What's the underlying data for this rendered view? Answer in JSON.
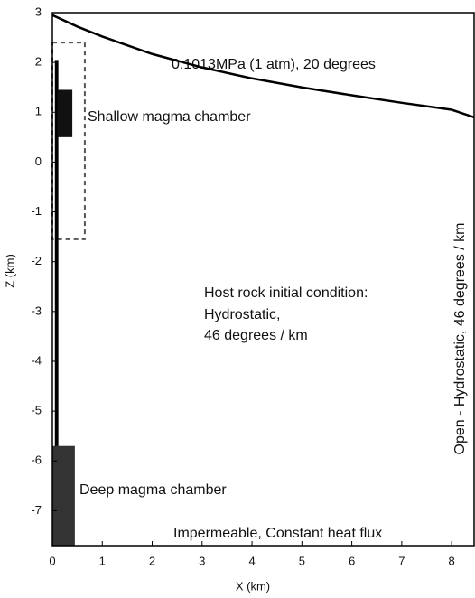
{
  "chart_data": {
    "type": "domain",
    "x_label": "X (km)",
    "y_label": "Z (km)",
    "xlim": [
      0,
      8.45
    ],
    "ylim": [
      -7.7,
      3
    ],
    "xticks": [
      0,
      1,
      2,
      3,
      4,
      5,
      6,
      7,
      8
    ],
    "yticks": [
      -7,
      -6,
      -5,
      -4,
      -3,
      -2,
      -1,
      0,
      1,
      2,
      3
    ],
    "surface": {
      "x": [
        0,
        0.5,
        1,
        2,
        3,
        4,
        5,
        6,
        7,
        8,
        8.45
      ],
      "y": [
        2.95,
        2.72,
        2.52,
        2.17,
        1.9,
        1.68,
        1.5,
        1.34,
        1.19,
        1.05,
        0.9
      ],
      "color": "#000000"
    },
    "conduit": {
      "x": [
        0.05,
        0.12
      ],
      "y": [
        -7.7,
        2.05
      ],
      "color": "#000000"
    },
    "shallow_chamber": {
      "name": "Shallow magma chamber",
      "x": [
        0.1,
        0.4
      ],
      "y": [
        0.5,
        1.45
      ],
      "color": "#111111"
    },
    "deep_chamber": {
      "name": "Deep magma chamber",
      "x": [
        0,
        0.45
      ],
      "y": [
        -7.7,
        -5.7
      ],
      "color": "#333333"
    },
    "refined_zone": {
      "x": [
        0,
        0.65
      ],
      "y": [
        -1.55,
        2.4
      ],
      "color": "#555555"
    },
    "annotations": {
      "top": "0.1013MPa (1 atm), 20 degrees",
      "bottom": "Impermeable, Constant heat flux",
      "right": "Open - Hydrostatic, 46 degrees / km",
      "host": [
        "Host rock initial condition:",
        "Hydrostatic,",
        "46 degrees / km"
      ]
    }
  }
}
